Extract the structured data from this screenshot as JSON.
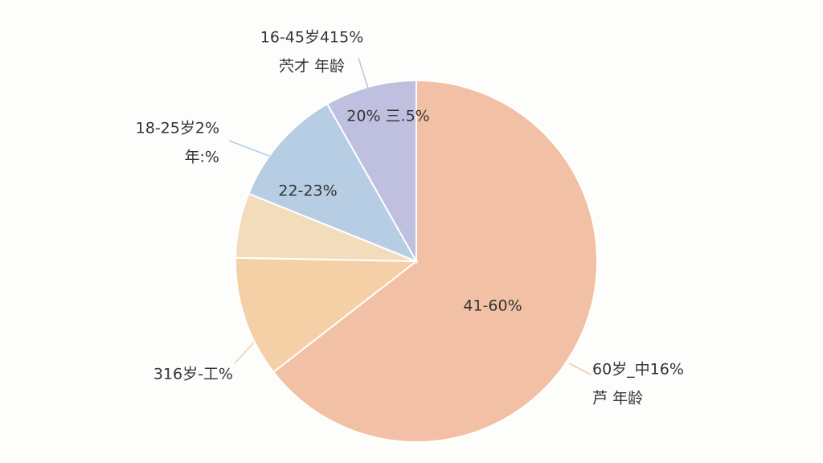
{
  "chart_data": {
    "type": "pie",
    "values": [
      64.5,
      10.8,
      5.8,
      10.7,
      8.2
    ],
    "colors": [
      "#f2c0a4",
      "#f5cfa6",
      "#f3dcbb",
      "#b7cde3",
      "#bfc0df"
    ],
    "inner_labels": [
      "41-60%",
      null,
      null,
      "22-23%",
      "20% 三.5%"
    ],
    "callouts": [
      [
        "60岁_中16%",
        "芦 年龄"
      ],
      [
        "316岁-工%"
      ],
      null,
      [
        "18-25岁2%",
        "年:%"
      ],
      [
        "16-45岁415%",
        "茓才 年龄"
      ]
    ]
  }
}
